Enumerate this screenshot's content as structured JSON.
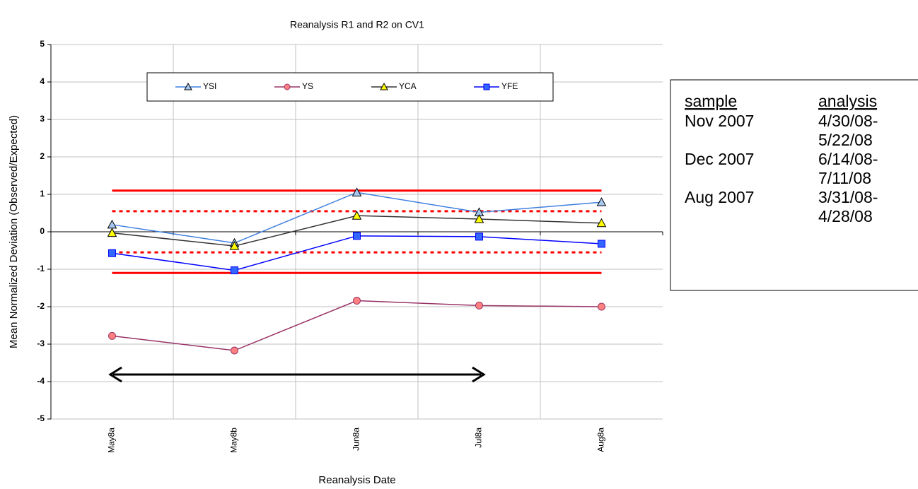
{
  "chart_data": {
    "type": "line",
    "title": "Reanalysis R1 and R2 on CV1",
    "y_label": "Mean Normalized Deviation (Observed/Expected)",
    "x_label": "Reanalysis Date",
    "categories": [
      "May8a",
      "May8b",
      "Jun8a",
      "Jul8a",
      "Aug8a"
    ],
    "series": [
      {
        "name": "YSI",
        "color": "#3f7fdf",
        "marker": "triangle",
        "marker_color": "#a6c8f0",
        "values": [
          0.19,
          -0.3,
          1.05,
          0.52,
          0.79
        ]
      },
      {
        "name": "YS",
        "color": "#993366",
        "marker": "circle",
        "marker_color": "#ff8080",
        "values": [
          -2.78,
          -3.17,
          -1.84,
          -1.97,
          -2.0
        ]
      },
      {
        "name": "YCA",
        "color": "#333333",
        "marker": "triangle",
        "marker_color": "#ffff00",
        "values": [
          -0.03,
          -0.38,
          0.43,
          0.34,
          0.23
        ]
      },
      {
        "name": "YFE",
        "color": "#0000ff",
        "marker": "square",
        "marker_color": "#3366ff",
        "values": [
          -0.57,
          -1.03,
          -0.11,
          -0.13,
          -0.32
        ]
      }
    ],
    "reference_lines": [
      {
        "value": 1.1,
        "style": "solid",
        "color": "#ff0000"
      },
      {
        "value": 0.55,
        "style": "dotted",
        "color": "#ff0000"
      },
      {
        "value": -0.55,
        "style": "dotted",
        "color": "#ff0000"
      },
      {
        "value": -1.1,
        "style": "solid",
        "color": "#ff0000"
      }
    ],
    "ylim": [
      -5,
      5
    ],
    "yticks": [
      -5,
      -4,
      -3,
      -2,
      -1,
      0,
      1,
      2,
      3,
      4,
      5
    ],
    "grid": true,
    "legend": "top"
  },
  "side_table": {
    "header": [
      "sample",
      "analysis"
    ],
    "rows": [
      [
        "Nov 2007",
        [
          "4/30/08-",
          "5/22/08"
        ]
      ],
      [
        "Dec 2007",
        [
          "6/14/08-",
          "7/11/08"
        ]
      ],
      [
        "Aug 2007",
        [
          "3/31/08-",
          "4/28/08"
        ]
      ]
    ]
  }
}
